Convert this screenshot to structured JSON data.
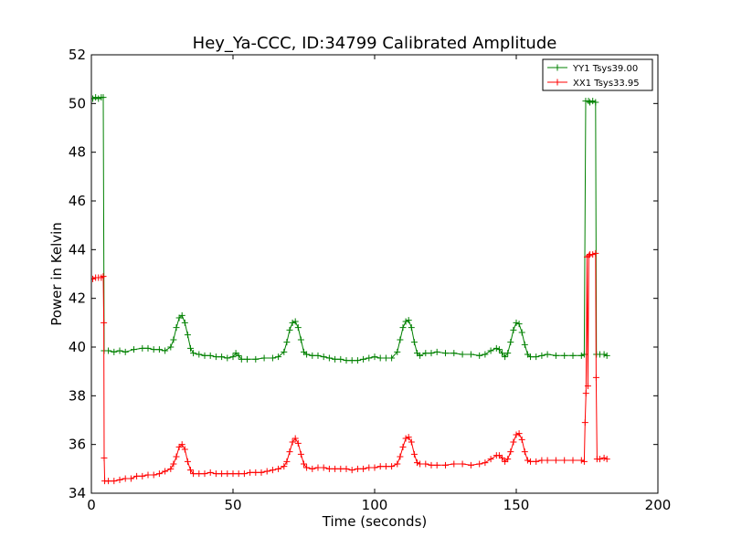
{
  "chart_data": {
    "type": "line",
    "title": "Hey_Ya-CCC, ID:34799 Calibrated Amplitude",
    "xlabel": "Time (seconds)",
    "ylabel": "Power in Kelvin",
    "xlim": [
      0,
      200
    ],
    "ylim": [
      34,
      52
    ],
    "xticks": [
      0,
      50,
      100,
      150,
      200
    ],
    "yticks": [
      34,
      36,
      38,
      40,
      42,
      44,
      46,
      48,
      50,
      52
    ],
    "grid": false,
    "legend": "top-right",
    "marker": "+",
    "series": [
      {
        "name": "YY1 Tsys39.00",
        "color": "#008000",
        "points": [
          [
            0.5,
            50.2
          ],
          [
            1.5,
            50.25
          ],
          [
            2.5,
            50.2
          ],
          [
            3.5,
            50.25
          ],
          [
            4.2,
            50.25
          ],
          [
            4.5,
            39.85
          ],
          [
            6,
            39.85
          ],
          [
            8,
            39.8
          ],
          [
            10,
            39.85
          ],
          [
            12,
            39.8
          ],
          [
            15,
            39.9
          ],
          [
            18,
            39.95
          ],
          [
            20,
            39.95
          ],
          [
            22,
            39.9
          ],
          [
            24,
            39.9
          ],
          [
            26,
            39.85
          ],
          [
            28,
            40.0
          ],
          [
            29,
            40.3
          ],
          [
            30,
            40.8
          ],
          [
            31,
            41.2
          ],
          [
            32,
            41.3
          ],
          [
            33,
            41.0
          ],
          [
            34,
            40.5
          ],
          [
            35,
            39.95
          ],
          [
            36,
            39.75
          ],
          [
            38,
            39.7
          ],
          [
            40,
            39.65
          ],
          [
            42,
            39.65
          ],
          [
            44,
            39.6
          ],
          [
            46,
            39.6
          ],
          [
            48,
            39.55
          ],
          [
            50,
            39.6
          ],
          [
            51,
            39.75
          ],
          [
            52,
            39.65
          ],
          [
            53,
            39.5
          ],
          [
            55,
            39.5
          ],
          [
            58,
            39.5
          ],
          [
            61,
            39.55
          ],
          [
            64,
            39.55
          ],
          [
            66,
            39.6
          ],
          [
            68,
            39.8
          ],
          [
            69,
            40.2
          ],
          [
            70,
            40.7
          ],
          [
            71,
            41.0
          ],
          [
            72,
            41.05
          ],
          [
            73,
            40.8
          ],
          [
            74,
            40.3
          ],
          [
            75,
            39.8
          ],
          [
            76,
            39.7
          ],
          [
            78,
            39.65
          ],
          [
            80,
            39.65
          ],
          [
            82,
            39.6
          ],
          [
            84,
            39.55
          ],
          [
            86,
            39.5
          ],
          [
            88,
            39.5
          ],
          [
            90,
            39.45
          ],
          [
            92,
            39.45
          ],
          [
            94,
            39.45
          ],
          [
            96,
            39.5
          ],
          [
            98,
            39.55
          ],
          [
            100,
            39.6
          ],
          [
            102,
            39.55
          ],
          [
            104,
            39.55
          ],
          [
            106,
            39.55
          ],
          [
            108,
            39.8
          ],
          [
            109,
            40.3
          ],
          [
            110,
            40.8
          ],
          [
            111,
            41.05
          ],
          [
            112,
            41.1
          ],
          [
            113,
            40.8
          ],
          [
            114,
            40.2
          ],
          [
            115,
            39.75
          ],
          [
            116,
            39.65
          ],
          [
            118,
            39.75
          ],
          [
            120,
            39.75
          ],
          [
            122,
            39.8
          ],
          [
            125,
            39.75
          ],
          [
            128,
            39.75
          ],
          [
            131,
            39.7
          ],
          [
            134,
            39.7
          ],
          [
            137,
            39.65
          ],
          [
            139,
            39.7
          ],
          [
            141,
            39.85
          ],
          [
            143,
            39.95
          ],
          [
            144,
            39.9
          ],
          [
            145,
            39.75
          ],
          [
            146,
            39.6
          ],
          [
            147,
            39.75
          ],
          [
            148,
            40.2
          ],
          [
            149,
            40.7
          ],
          [
            150,
            41.0
          ],
          [
            151,
            40.95
          ],
          [
            152,
            40.6
          ],
          [
            153,
            40.1
          ],
          [
            154,
            39.7
          ],
          [
            155,
            39.6
          ],
          [
            157,
            39.6
          ],
          [
            159,
            39.65
          ],
          [
            161,
            39.7
          ],
          [
            164,
            39.65
          ],
          [
            167,
            39.65
          ],
          [
            170,
            39.65
          ],
          [
            173,
            39.65
          ],
          [
            174,
            39.7
          ],
          [
            174.5,
            50.1
          ],
          [
            175.5,
            50.1
          ],
          [
            176,
            50.05
          ],
          [
            177,
            50.1
          ],
          [
            178,
            50.05
          ],
          [
            178.3,
            39.7
          ],
          [
            179.5,
            39.7
          ],
          [
            181,
            39.7
          ],
          [
            182,
            39.65
          ]
        ]
      },
      {
        "name": "XX1 Tsys33.95",
        "color": "#ff0000",
        "points": [
          [
            0.5,
            42.8
          ],
          [
            1.5,
            42.85
          ],
          [
            2.5,
            42.85
          ],
          [
            3.5,
            42.85
          ],
          [
            4.2,
            42.9
          ],
          [
            4.4,
            41.0
          ],
          [
            4.5,
            35.45
          ],
          [
            4.7,
            34.5
          ],
          [
            6,
            34.5
          ],
          [
            8,
            34.5
          ],
          [
            10,
            34.55
          ],
          [
            12,
            34.6
          ],
          [
            14,
            34.6
          ],
          [
            16,
            34.7
          ],
          [
            18,
            34.7
          ],
          [
            20,
            34.75
          ],
          [
            22,
            34.75
          ],
          [
            24,
            34.8
          ],
          [
            26,
            34.9
          ],
          [
            28,
            35.0
          ],
          [
            29,
            35.2
          ],
          [
            30,
            35.5
          ],
          [
            31,
            35.9
          ],
          [
            32,
            36.0
          ],
          [
            33,
            35.8
          ],
          [
            34,
            35.3
          ],
          [
            35,
            34.95
          ],
          [
            36,
            34.8
          ],
          [
            38,
            34.8
          ],
          [
            40,
            34.8
          ],
          [
            42,
            34.85
          ],
          [
            44,
            34.8
          ],
          [
            46,
            34.8
          ],
          [
            48,
            34.8
          ],
          [
            50,
            34.8
          ],
          [
            52,
            34.8
          ],
          [
            54,
            34.8
          ],
          [
            56,
            34.85
          ],
          [
            58,
            34.85
          ],
          [
            60,
            34.85
          ],
          [
            62,
            34.9
          ],
          [
            64,
            34.95
          ],
          [
            66,
            35.0
          ],
          [
            68,
            35.1
          ],
          [
            69,
            35.3
          ],
          [
            70,
            35.7
          ],
          [
            71,
            36.1
          ],
          [
            72,
            36.25
          ],
          [
            73,
            36.05
          ],
          [
            74,
            35.6
          ],
          [
            75,
            35.2
          ],
          [
            76,
            35.05
          ],
          [
            78,
            35.0
          ],
          [
            80,
            35.05
          ],
          [
            82,
            35.05
          ],
          [
            84,
            35.0
          ],
          [
            86,
            35.0
          ],
          [
            88,
            35.0
          ],
          [
            90,
            35.0
          ],
          [
            92,
            34.95
          ],
          [
            94,
            35.0
          ],
          [
            96,
            35.0
          ],
          [
            98,
            35.05
          ],
          [
            100,
            35.05
          ],
          [
            102,
            35.1
          ],
          [
            104,
            35.1
          ],
          [
            106,
            35.1
          ],
          [
            108,
            35.2
          ],
          [
            109,
            35.5
          ],
          [
            110,
            35.9
          ],
          [
            111,
            36.25
          ],
          [
            112,
            36.3
          ],
          [
            113,
            36.1
          ],
          [
            114,
            35.6
          ],
          [
            115,
            35.25
          ],
          [
            116,
            35.2
          ],
          [
            118,
            35.2
          ],
          [
            120,
            35.15
          ],
          [
            122,
            35.15
          ],
          [
            125,
            35.15
          ],
          [
            128,
            35.2
          ],
          [
            131,
            35.2
          ],
          [
            134,
            35.15
          ],
          [
            137,
            35.2
          ],
          [
            139,
            35.25
          ],
          [
            141,
            35.4
          ],
          [
            143,
            35.55
          ],
          [
            144,
            35.55
          ],
          [
            145,
            35.45
          ],
          [
            146,
            35.3
          ],
          [
            147,
            35.4
          ],
          [
            148,
            35.7
          ],
          [
            149,
            36.1
          ],
          [
            150,
            36.4
          ],
          [
            151,
            36.45
          ],
          [
            152,
            36.2
          ],
          [
            153,
            35.7
          ],
          [
            154,
            35.35
          ],
          [
            155,
            35.3
          ],
          [
            157,
            35.3
          ],
          [
            159,
            35.35
          ],
          [
            161,
            35.35
          ],
          [
            164,
            35.35
          ],
          [
            167,
            35.35
          ],
          [
            170,
            35.35
          ],
          [
            173,
            35.35
          ],
          [
            174,
            35.3
          ],
          [
            174.3,
            36.9
          ],
          [
            174.6,
            38.1
          ],
          [
            175,
            43.7
          ],
          [
            175.3,
            38.4
          ],
          [
            175.6,
            43.75
          ],
          [
            176,
            43.8
          ],
          [
            177,
            43.8
          ],
          [
            178,
            43.85
          ],
          [
            178.2,
            38.75
          ],
          [
            178.5,
            35.4
          ],
          [
            179.5,
            35.4
          ],
          [
            181,
            35.45
          ],
          [
            182,
            35.4
          ]
        ]
      }
    ]
  }
}
